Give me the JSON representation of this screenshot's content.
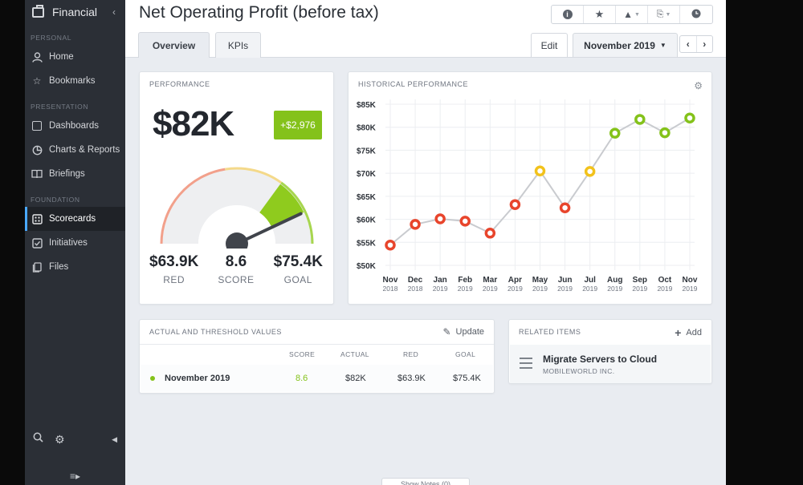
{
  "sidebar": {
    "app_name": "Financial",
    "sections": {
      "personal": "PERSONAL",
      "presentation": "PRESENTATION",
      "foundation": "FOUNDATION"
    },
    "items": {
      "home": "Home",
      "bookmarks": "Bookmarks",
      "dashboards": "Dashboards",
      "charts_reports": "Charts & Reports",
      "briefings": "Briefings",
      "scorecards": "Scorecards",
      "initiatives": "Initiatives",
      "files": "Files"
    },
    "active_item": "Scorecards"
  },
  "header": {
    "title": "Net Operating Profit (before tax)",
    "tabs": [
      "Overview",
      "KPIs"
    ],
    "active_tab": "Overview",
    "edit_label": "Edit",
    "period": "November 2019"
  },
  "performance": {
    "title": "PERFORMANCE",
    "value": "$82K",
    "delta": "+$2,976",
    "red_value": "$63.9K",
    "red_label": "RED",
    "score_value": "8.6",
    "score_label": "SCORE",
    "goal_value": "$75.4K",
    "goal_label": "GOAL",
    "gauge_score": 8.6,
    "gauge_max": 10
  },
  "historical": {
    "title": "HISTORICAL PERFORMANCE"
  },
  "chart_data": {
    "type": "line",
    "title": "HISTORICAL PERFORMANCE",
    "categories": [
      "Nov 2018",
      "Dec 2018",
      "Jan 2019",
      "Feb 2019",
      "Mar 2019",
      "Apr 2019",
      "May 2019",
      "Jun 2019",
      "Jul 2019",
      "Aug 2019",
      "Sep 2019",
      "Oct 2019",
      "Nov 2019"
    ],
    "x_labels_month": [
      "Nov",
      "Dec",
      "Jan",
      "Feb",
      "Mar",
      "Apr",
      "May",
      "Jun",
      "Jul",
      "Aug",
      "Sep",
      "Oct",
      "Nov"
    ],
    "x_labels_year": [
      "2018",
      "2018",
      "2019",
      "2019",
      "2019",
      "2019",
      "2019",
      "2019",
      "2019",
      "2019",
      "2019",
      "2019",
      "2019"
    ],
    "values": [
      54400,
      58900,
      60100,
      59600,
      57000,
      63200,
      70500,
      62500,
      70400,
      78700,
      81700,
      78800,
      82000
    ],
    "point_colors": [
      "#e8452c",
      "#e8452c",
      "#e8452c",
      "#e8452c",
      "#e8452c",
      "#e8452c",
      "#f2c21b",
      "#e8452c",
      "#f2c21b",
      "#84c21a",
      "#84c21a",
      "#84c21a",
      "#84c21a"
    ],
    "yticks": [
      "$50K",
      "$55K",
      "$60K",
      "$65K",
      "$70K",
      "$75K",
      "$80K",
      "$85K"
    ],
    "ylim": [
      50000,
      85000
    ],
    "grid": true
  },
  "actuals": {
    "title": "ACTUAL AND THRESHOLD VALUES",
    "update_label": "Update",
    "columns": [
      "SCORE",
      "ACTUAL",
      "RED",
      "GOAL"
    ],
    "row": {
      "period": "November 2019",
      "score": "8.6",
      "actual": "$82K",
      "red": "$63.9K",
      "goal": "$75.4K"
    }
  },
  "related": {
    "title": "RELATED ITEMS",
    "add_label": "Add",
    "item_title": "Migrate Servers to Cloud",
    "item_sub": "MOBILEWORLD INC."
  },
  "footer": {
    "show_notes": "Show Notes (0)"
  },
  "colors": {
    "red": "#e8452c",
    "yellow": "#f2c21b",
    "green": "#84c21a",
    "sidebar_bg": "#2b2f36",
    "active_accent": "#49a8ff"
  }
}
